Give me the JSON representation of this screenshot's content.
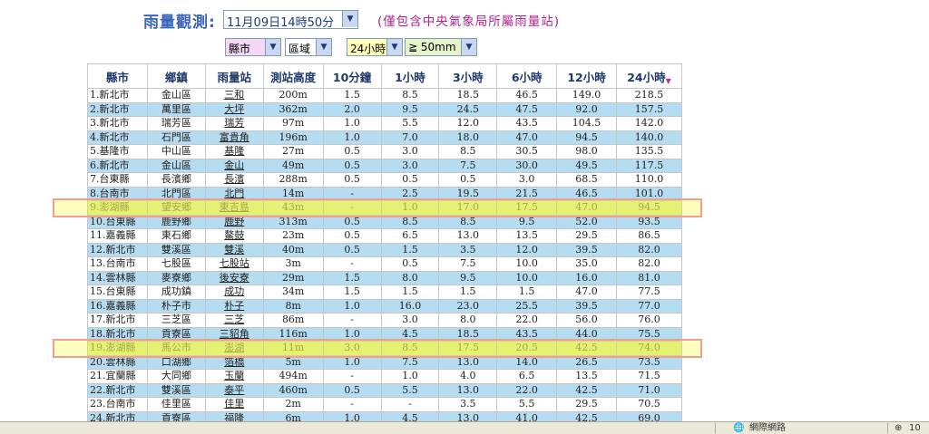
{
  "header": {
    "title": "雨量觀測:",
    "time_selected": "11月09日14時50分",
    "note": "(僅包含中央氣象局所屬雨量站)"
  },
  "filters": {
    "county": "縣市",
    "district": "區域",
    "period": "24小時",
    "threshold": "≧ 50mm"
  },
  "table": {
    "headers": [
      "縣市",
      "鄉鎮",
      "雨量站",
      "測站高度",
      "10分鐘",
      "1小時",
      "3小時",
      "6小時",
      "12小時",
      "24小時"
    ],
    "rows": [
      [
        "1.新北市",
        "金山區",
        "三和",
        "200m",
        "1.5",
        "8.5",
        "18.5",
        "46.5",
        "149.0",
        "218.5"
      ],
      [
        "2.新北市",
        "萬里區",
        "大坪",
        "362m",
        "2.0",
        "9.5",
        "24.5",
        "47.5",
        "92.0",
        "157.5"
      ],
      [
        "3.新北市",
        "瑞芳區",
        "瑞芳",
        "97m",
        "1.0",
        "5.5",
        "12.0",
        "43.5",
        "104.5",
        "142.0"
      ],
      [
        "4.新北市",
        "石門區",
        "富貴角",
        "196m",
        "1.0",
        "7.0",
        "18.0",
        "47.0",
        "94.5",
        "140.0"
      ],
      [
        "5.基隆市",
        "中山區",
        "基隆",
        "27m",
        "0.5",
        "3.0",
        "8.5",
        "30.5",
        "98.0",
        "135.5"
      ],
      [
        "6.新北市",
        "金山區",
        "金山",
        "49m",
        "0.5",
        "3.0",
        "7.5",
        "30.0",
        "49.5",
        "117.5"
      ],
      [
        "7.台東縣",
        "長濱鄉",
        "長濱",
        "288m",
        "0.5",
        "0.5",
        "0.5",
        "3.0",
        "68.5",
        "110.0"
      ],
      [
        "8.台南市",
        "北門區",
        "北門",
        "14m",
        "-",
        "2.5",
        "19.5",
        "21.5",
        "46.5",
        "101.0"
      ],
      [
        "9.澎湖縣",
        "望安鄉",
        "東吉島",
        "43m",
        "-",
        "1.0",
        "17.0",
        "17.5",
        "47.0",
        "94.5"
      ],
      [
        "10.台東縣",
        "鹿野鄉",
        "鹿野",
        "313m",
        "0.5",
        "8.5",
        "8.5",
        "9.5",
        "52.0",
        "93.5"
      ],
      [
        "11.嘉義縣",
        "東石鄉",
        "鰲鼓",
        "23m",
        "0.5",
        "6.5",
        "13.0",
        "13.5",
        "29.5",
        "86.5"
      ],
      [
        "12.新北市",
        "雙溪區",
        "雙溪",
        "40m",
        "0.5",
        "1.5",
        "3.5",
        "12.0",
        "39.5",
        "82.0"
      ],
      [
        "13.台南市",
        "七股區",
        "七股站",
        "3m",
        "-",
        "0.5",
        "7.5",
        "10.0",
        "35.0",
        "82.0"
      ],
      [
        "14.雲林縣",
        "麥寮鄉",
        "後安寮",
        "29m",
        "1.5",
        "8.0",
        "9.5",
        "10.0",
        "16.0",
        "81.0"
      ],
      [
        "15.台東縣",
        "成功鎮",
        "成功",
        "34m",
        "1.5",
        "1.5",
        "1.5",
        "1.5",
        "47.0",
        "77.5"
      ],
      [
        "16.嘉義縣",
        "朴子市",
        "朴子",
        "8m",
        "1.0",
        "16.0",
        "23.0",
        "25.5",
        "39.5",
        "77.0"
      ],
      [
        "17.新北市",
        "三芝區",
        "三芝",
        "86m",
        "-",
        "3.0",
        "8.0",
        "22.0",
        "56.0",
        "76.0"
      ],
      [
        "18.新北市",
        "貢寮區",
        "三貂角",
        "116m",
        "1.0",
        "4.5",
        "18.5",
        "43.5",
        "44.0",
        "75.5"
      ],
      [
        "19.澎湖縣",
        "馬公市",
        "澎湖",
        "11m",
        "3.0",
        "8.5",
        "17.5",
        "20.5",
        "42.5",
        "74.0"
      ],
      [
        "20.雲林縣",
        "口湖鄉",
        "箔橋",
        "5m",
        "1.0",
        "7.5",
        "13.0",
        "14.0",
        "26.5",
        "73.5"
      ],
      [
        "21.宜蘭縣",
        "大同鄉",
        "玉蘭",
        "494m",
        "-",
        "1.0",
        "4.0",
        "6.5",
        "13.5",
        "71.5"
      ],
      [
        "22.新北市",
        "雙溪區",
        "泰平",
        "460m",
        "0.5",
        "5.5",
        "13.0",
        "22.0",
        "42.5",
        "71.0"
      ],
      [
        "23.台南市",
        "佳里區",
        "佳里",
        "2m",
        "-",
        "-",
        "3.5",
        "5.5",
        "29.5",
        "70.5"
      ],
      [
        "24.新北市",
        "貢寮區",
        "福隆",
        "6m",
        "1.0",
        "4.5",
        "13.0",
        "41.0",
        "42.5",
        "69.0"
      ]
    ],
    "highlighted_rows": [
      8,
      18
    ]
  },
  "statusbar": {
    "zone": "網際網路",
    "zoom": "10"
  }
}
